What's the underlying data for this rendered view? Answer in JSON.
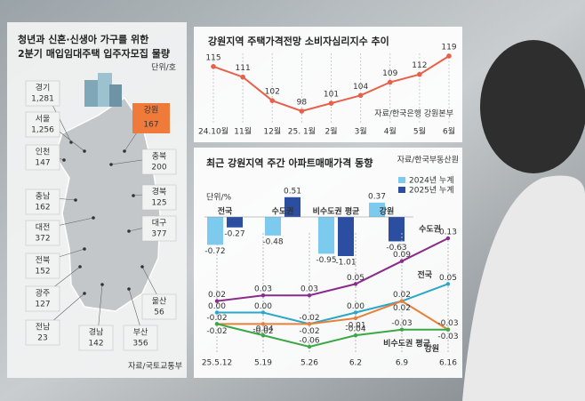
{
  "map_panel": {
    "title_lines": [
      "청년과 신혼·신생아 가구를 위한",
      "2분기 매입임대주택 입주자모집 물량"
    ],
    "unit": "단위/호",
    "regions": [
      {
        "name": "경기",
        "value": "1,281"
      },
      {
        "name": "서울",
        "value": "1,256"
      },
      {
        "name": "인천",
        "value": "147"
      },
      {
        "name": "충남",
        "value": "162"
      },
      {
        "name": "대전",
        "value": "372"
      },
      {
        "name": "전북",
        "value": "152"
      },
      {
        "name": "광주",
        "value": "127"
      },
      {
        "name": "전남",
        "value": "23"
      },
      {
        "name": "경남",
        "value": "142"
      },
      {
        "name": "부산",
        "value": "356"
      },
      {
        "name": "울산",
        "value": "56"
      },
      {
        "name": "대구",
        "value": "377"
      },
      {
        "name": "경북",
        "value": "125"
      },
      {
        "name": "충북",
        "value": "200"
      },
      {
        "name": "강원",
        "value": "167"
      }
    ],
    "source": "자료/국토교통부"
  },
  "chart_data": [
    {
      "type": "line",
      "title": "강원지역 주택가격전망 소비자심리지수 추이",
      "source": "자료/한국은행 강원본부",
      "categories": [
        "24.10월",
        "11월",
        "12월",
        "25. 1월",
        "2월",
        "3월",
        "4월",
        "5월",
        "6월"
      ],
      "values": [
        115,
        111,
        102,
        98,
        101,
        104,
        109,
        112,
        119
      ],
      "color": "#e8604a"
    },
    {
      "type": "bar",
      "title": "최근 강원지역 주간 아파트매매가격 동향",
      "source": "자료/한국부동산원",
      "unit": "단위/%",
      "categories": [
        "전국",
        "수도권",
        "비수도권 평균",
        "강원"
      ],
      "series": [
        {
          "name": "2024년 누계",
          "color": "#7ccbee",
          "values": [
            -0.72,
            -0.48,
            -0.95,
            0.37
          ]
        },
        {
          "name": "2025년 누계",
          "color": "#2c4ea0",
          "values": [
            -0.27,
            0.51,
            -1.01,
            -0.63
          ]
        }
      ]
    },
    {
      "type": "line",
      "x": [
        "25.5.12",
        "5.19",
        "5.26",
        "6.2",
        "6.9",
        "6.16"
      ],
      "series": [
        {
          "name": "수도권",
          "color": "#8b2a8c",
          "values": [
            0.02,
            0.03,
            0.03,
            0.05,
            0.09,
            0.13
          ]
        },
        {
          "name": "전국",
          "color": "#2aa7c9",
          "values": [
            0.0,
            0.0,
            -0.02,
            0.0,
            0.02,
            0.05
          ],
          "value_labels": [
            "0.00",
            "0.00",
            "-0.02",
            "0.00",
            "0.02",
            "0.05"
          ]
        },
        {
          "name": "강원",
          "color": "#e8803a",
          "values": [
            -0.02,
            -0.02,
            -0.02,
            -0.01,
            0.02,
            -0.03
          ]
        },
        {
          "name": "비수도권 평균",
          "color": "#3aa845",
          "values": [
            -0.02,
            -0.04,
            -0.06,
            -0.04,
            -0.03,
            -0.03
          ]
        }
      ]
    }
  ]
}
